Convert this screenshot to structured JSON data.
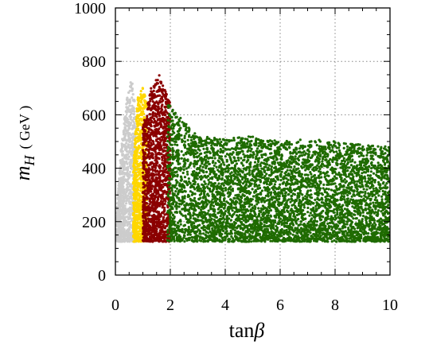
{
  "chart_data": {
    "type": "scatter",
    "title": "",
    "xlabel": "tanβ",
    "ylabel": "m_H (GeV)",
    "xlabel_parts": {
      "base": "tan",
      "symbol": "β"
    },
    "ylabel_parts": {
      "symbol": "m",
      "subscript": "H",
      "unit": "( GeV )"
    },
    "xlim": [
      0,
      10
    ],
    "ylim": [
      0,
      1000
    ],
    "xticks": [
      0,
      2,
      4,
      6,
      8,
      10
    ],
    "yticks": [
      0,
      200,
      400,
      600,
      800,
      1000
    ],
    "xtick_labels": [
      "0",
      "2",
      "4",
      "6",
      "8",
      "10"
    ],
    "ytick_labels": [
      "0",
      "200",
      "400",
      "600",
      "800",
      "1000"
    ],
    "grid": "dotted",
    "legend": "none",
    "series": [
      {
        "color": "#cccccc",
        "x_range": [
          0.05,
          0.75
        ],
        "y_floor": 125,
        "envelope": [
          [
            0.05,
            230
          ],
          [
            0.2,
            470
          ],
          [
            0.4,
            650
          ],
          [
            0.6,
            745
          ],
          [
            0.75,
            600
          ]
        ],
        "density": 900
      },
      {
        "color": "#ffd700",
        "x_range": [
          0.65,
          1.15
        ],
        "y_floor": 125,
        "envelope": [
          [
            0.65,
            400
          ],
          [
            0.8,
            660
          ],
          [
            1.0,
            710
          ],
          [
            1.15,
            640
          ]
        ],
        "density": 800
      },
      {
        "color": "#8b0000",
        "x_range": [
          1.0,
          2.0
        ],
        "y_floor": 125,
        "envelope": [
          [
            1.0,
            560
          ],
          [
            1.3,
            700
          ],
          [
            1.6,
            750
          ],
          [
            1.8,
            700
          ],
          [
            2.0,
            640
          ]
        ],
        "density": 1400
      },
      {
        "color": "#1f6b00",
        "x_range": [
          1.9,
          10.0
        ],
        "y_floor": 125,
        "envelope": [
          [
            1.9,
            650
          ],
          [
            2.5,
            580
          ],
          [
            3.0,
            520
          ],
          [
            4.0,
            510
          ],
          [
            5.0,
            520
          ],
          [
            6.0,
            500
          ],
          [
            7.0,
            510
          ],
          [
            8.0,
            500
          ],
          [
            9.0,
            490
          ],
          [
            10.0,
            480
          ]
        ],
        "density": 5200
      }
    ]
  }
}
